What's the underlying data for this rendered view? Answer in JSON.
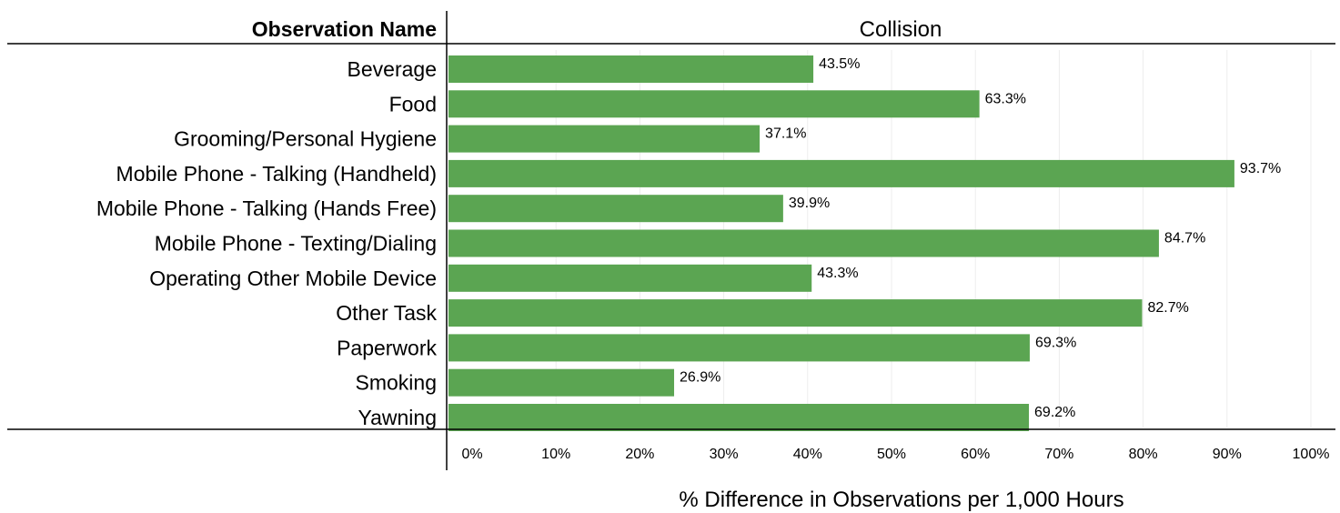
{
  "chart_data": {
    "type": "bar",
    "orientation": "horizontal",
    "row_header": "Observation Name",
    "panel_title": "Collision",
    "xlabel": "% Difference in Observations per 1,000 Hours",
    "ylabel": "",
    "xlim": [
      0,
      100
    ],
    "x_ticks": [
      "0%",
      "10%",
      "20%",
      "30%",
      "40%",
      "50%",
      "60%",
      "70%",
      "80%",
      "90%",
      "100%"
    ],
    "grid": "vertical",
    "bar_color": "#5ba552",
    "categories": [
      "Beverage",
      "Food",
      "Grooming/Personal Hygiene",
      "Mobile Phone - Talking (Handheld)",
      "Mobile Phone - Talking (Hands Free)",
      "Mobile Phone - Texting/Dialing",
      "Operating Other Mobile Device",
      "Other Task",
      "Paperwork",
      "Smoking",
      "Yawning"
    ],
    "values": [
      43.5,
      63.3,
      37.1,
      93.7,
      39.9,
      84.7,
      43.3,
      82.7,
      69.3,
      26.9,
      69.2
    ],
    "value_labels": [
      "43.5%",
      "63.3%",
      "37.1%",
      "93.7%",
      "39.9%",
      "84.7%",
      "43.3%",
      "82.7%",
      "69.3%",
      "26.9%",
      "69.2%"
    ]
  }
}
